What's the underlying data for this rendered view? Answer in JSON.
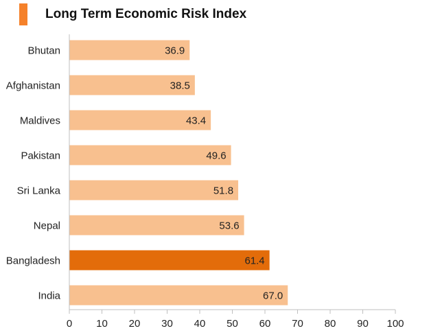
{
  "chart_data": {
    "type": "bar",
    "orientation": "horizontal",
    "title": "Long Term Economic Risk Index",
    "categories": [
      "Bhutan",
      "Afghanistan",
      "Maldives",
      "Pakistan",
      "Sri Lanka",
      "Nepal",
      "Bangladesh",
      "India"
    ],
    "values": [
      36.9,
      38.5,
      43.4,
      49.6,
      51.8,
      53.6,
      61.4,
      67.0
    ],
    "value_labels": [
      "36.9",
      "38.5",
      "43.4",
      "49.6",
      "51.8",
      "53.6",
      "61.4",
      "67.0"
    ],
    "highlight": "Bangladesh",
    "xlim": [
      0,
      100
    ],
    "xticks": [
      0,
      10,
      20,
      30,
      40,
      50,
      60,
      70,
      80,
      90,
      100
    ],
    "xlabel": "",
    "ylabel": "",
    "grid": false,
    "colors": {
      "accent": "#f5812a",
      "bar": "#f8c08f",
      "highlight_bar": "#e36c0a",
      "axis": "#bfbfbf"
    }
  }
}
